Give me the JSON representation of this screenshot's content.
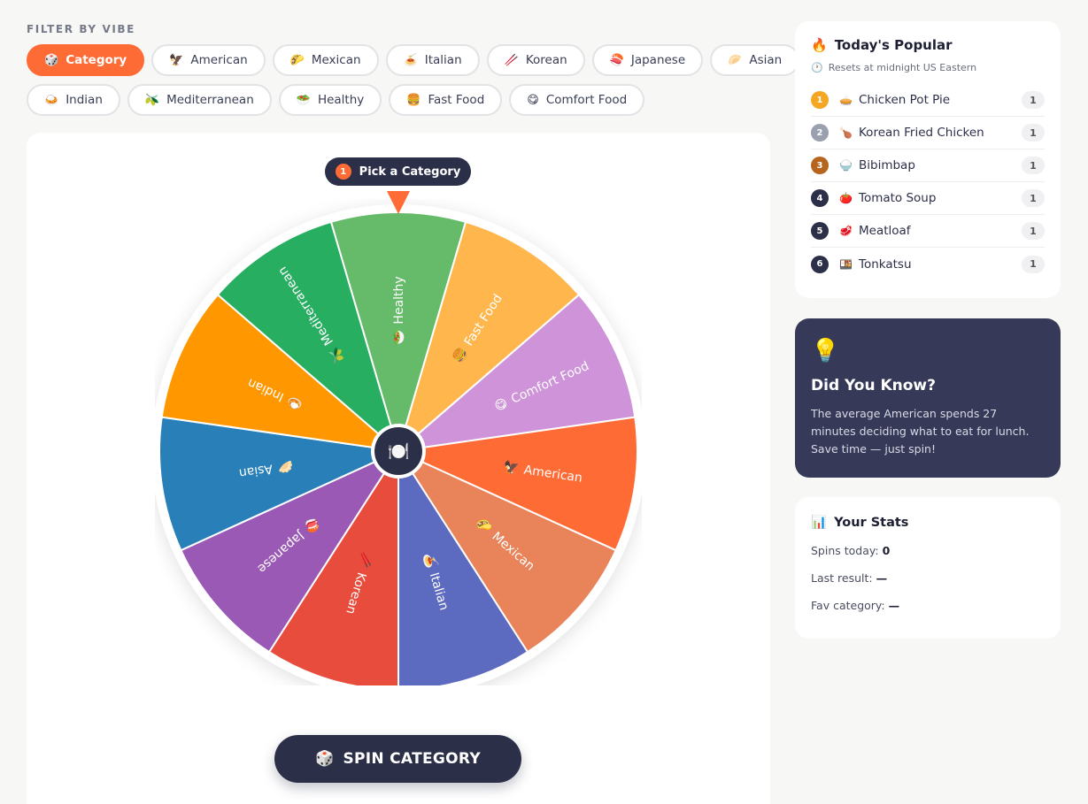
{
  "filter": {
    "label": "FILTER BY VIBE",
    "chips_row1": [
      {
        "emoji": "🎲",
        "label": "Category",
        "active": true
      },
      {
        "emoji": "🦅",
        "label": "American",
        "active": false
      },
      {
        "emoji": "🌮",
        "label": "Mexican",
        "active": false
      },
      {
        "emoji": "🍝",
        "label": "Italian",
        "active": false
      },
      {
        "emoji": "🥢",
        "label": "Korean",
        "active": false
      },
      {
        "emoji": "🍣",
        "label": "Japanese",
        "active": false
      },
      {
        "emoji": "🥟",
        "label": "Asian",
        "active": false
      }
    ],
    "chips_row2": [
      {
        "emoji": "🍛",
        "label": "Indian",
        "active": false
      },
      {
        "emoji": "🫒",
        "label": "Mediterranean",
        "active": false
      },
      {
        "emoji": "🥗",
        "label": "Healthy",
        "active": false
      },
      {
        "emoji": "🍔",
        "label": "Fast Food",
        "active": false
      },
      {
        "emoji": "😋",
        "label": "Comfort Food",
        "active": false
      }
    ]
  },
  "wheel": {
    "step_number": "1",
    "step_label": "Pick a Category",
    "center_icon": "🍽️",
    "segments": [
      {
        "label": "Healthy",
        "emoji": "🥗",
        "color": "#66bb6a"
      },
      {
        "label": "Fast Food",
        "emoji": "🍔",
        "color": "#ffb74d"
      },
      {
        "label": "Comfort Food",
        "emoji": "😋",
        "color": "#ce93d8"
      },
      {
        "label": "American",
        "emoji": "🦅",
        "color": "#ff6b35"
      },
      {
        "label": "Mexican",
        "emoji": "🌮",
        "color": "#e8835a"
      },
      {
        "label": "Italian",
        "emoji": "🍝",
        "color": "#5c6bc0"
      },
      {
        "label": "Korean",
        "emoji": "🥢",
        "color": "#e74c3c"
      },
      {
        "label": "Japanese",
        "emoji": "🍣",
        "color": "#9b59b6"
      },
      {
        "label": "Asian",
        "emoji": "🥟",
        "color": "#2980b9"
      },
      {
        "label": "Indian",
        "emoji": "🍛",
        "color": "#ff9800"
      },
      {
        "label": "Mediterranean",
        "emoji": "🫒",
        "color": "#27ae60"
      }
    ],
    "spin_icon": "🎲",
    "spin_label": "SPIN CATEGORY"
  },
  "popular": {
    "icon": "🔥",
    "title": "Today's Popular",
    "reset_icon": "🕐",
    "reset_note": "Resets at midnight US Eastern",
    "items": [
      {
        "rank": "1",
        "color": "#f5a623",
        "emoji": "🥧",
        "name": "Chicken Pot Pie",
        "count": "1"
      },
      {
        "rank": "2",
        "color": "#9aa0ad",
        "emoji": "🍗",
        "name": "Korean Fried Chicken",
        "count": "1"
      },
      {
        "rank": "3",
        "color": "#b5651d",
        "emoji": "🍚",
        "name": "Bibimbap",
        "count": "1"
      },
      {
        "rank": "4",
        "color": "#2c2f48",
        "emoji": "🍅",
        "name": "Tomato Soup",
        "count": "1"
      },
      {
        "rank": "5",
        "color": "#2c2f48",
        "emoji": "🥩",
        "name": "Meatloaf",
        "count": "1"
      },
      {
        "rank": "6",
        "color": "#2c2f48",
        "emoji": "🍱",
        "name": "Tonkatsu",
        "count": "1"
      }
    ]
  },
  "tip": {
    "icon": "💡",
    "title": "Did You Know?",
    "text": "The average American spends 27 minutes deciding what to eat for lunch. Save time — just spin!"
  },
  "stats": {
    "icon": "📊",
    "title": "Your Stats",
    "spins_label": "Spins today:",
    "spins_value": "0",
    "last_label": "Last result:",
    "last_value": "—",
    "fav_label": "Fav category:",
    "fav_value": "—"
  }
}
